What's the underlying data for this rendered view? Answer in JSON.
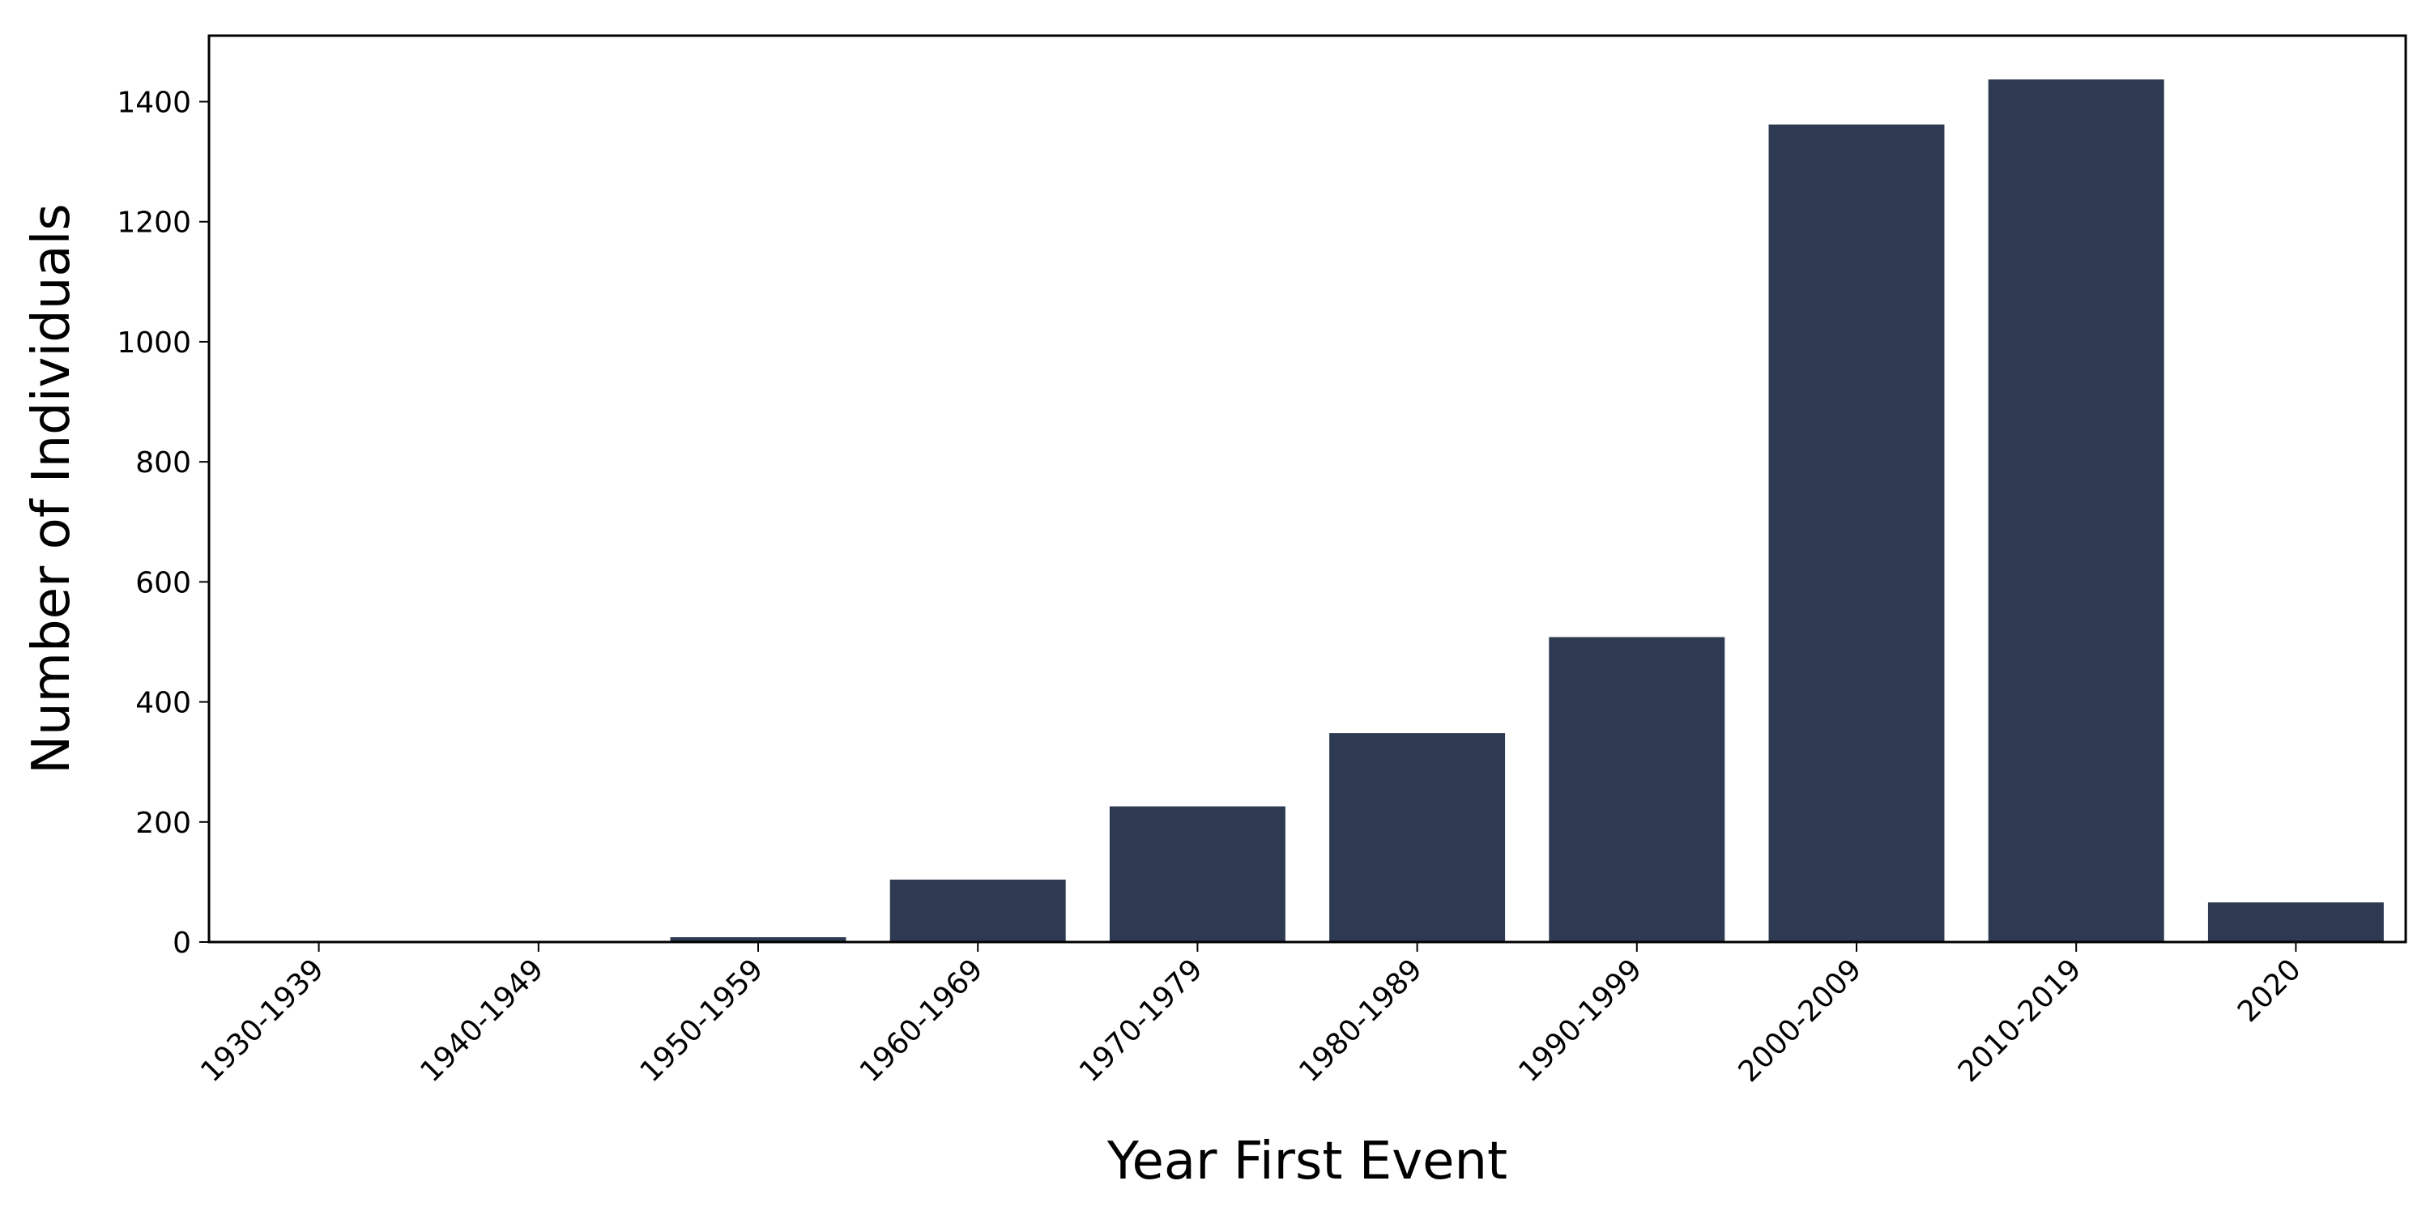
{
  "chart_data": {
    "type": "bar",
    "title": "",
    "xlabel": "Year First Event",
    "ylabel": "Number of Individuals",
    "categories": [
      "1930-1939",
      "1940-1949",
      "1950-1959",
      "1960-1969",
      "1970-1979",
      "1980-1989",
      "1990-1999",
      "2000-2009",
      "2010-2019",
      "2020"
    ],
    "values": [
      1,
      1,
      8,
      104,
      226,
      348,
      508,
      1362,
      1437,
      66
    ],
    "ylim": [
      0,
      1510
    ],
    "yticks": [
      0,
      200,
      400,
      600,
      800,
      1000,
      1200,
      1400
    ],
    "grid": false,
    "legend": "none",
    "bar_color": "#2d3a52"
  }
}
